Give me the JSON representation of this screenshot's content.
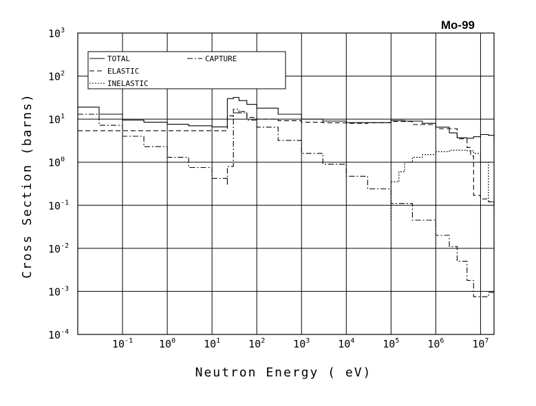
{
  "chart_data": {
    "type": "line",
    "title": "Mo-99",
    "xlabel": "Neutron Energy ( eV)",
    "ylabel": "Cross Section (barns)",
    "xscale": "log",
    "yscale": "log",
    "xlim": [
      0.01,
      20000000
    ],
    "ylim": [
      0.0001,
      1000
    ],
    "grid": true,
    "legend_position": "top-left",
    "x_ticks": [
      {
        "base": "10",
        "exp": "-1",
        "value": 0.1
      },
      {
        "base": "10",
        "exp": "0",
        "value": 1
      },
      {
        "base": "10",
        "exp": "1",
        "value": 10
      },
      {
        "base": "10",
        "exp": "2",
        "value": 100
      },
      {
        "base": "10",
        "exp": "3",
        "value": 1000
      },
      {
        "base": "10",
        "exp": "4",
        "value": 10000
      },
      {
        "base": "10",
        "exp": "5",
        "value": 100000
      },
      {
        "base": "10",
        "exp": "6",
        "value": 1000000
      },
      {
        "base": "10",
        "exp": "7",
        "value": 10000000
      }
    ],
    "y_ticks": [
      {
        "base": "10",
        "exp": "3",
        "value": 1000
      },
      {
        "base": "10",
        "exp": "2",
        "value": 100
      },
      {
        "base": "10",
        "exp": "1",
        "value": 10
      },
      {
        "base": "10",
        "exp": "0",
        "value": 1
      },
      {
        "base": "10",
        "exp": "-1",
        "value": 0.1
      },
      {
        "base": "10",
        "exp": "-2",
        "value": 0.01
      },
      {
        "base": "10",
        "exp": "-3",
        "value": 0.001
      },
      {
        "base": "10",
        "exp": "-4",
        "value": 0.0001
      }
    ],
    "series": [
      {
        "name": "TOTAL",
        "dash": "solid",
        "color": "#000000",
        "x": [
          0.01,
          0.03,
          0.1,
          0.3,
          1,
          3,
          10,
          22,
          22,
          30,
          40,
          60,
          100,
          300,
          1000,
          3000,
          10000,
          30000,
          100000,
          200000,
          500000,
          1000000,
          2000000,
          3000000,
          5000000,
          7000000,
          10000000,
          15000000,
          20000000
        ],
        "y": [
          19,
          13,
          9.5,
          8.5,
          7.6,
          7.0,
          6.6,
          6.3,
          30,
          32,
          27,
          22,
          18,
          13,
          10,
          9.0,
          8.3,
          8.3,
          9.3,
          9.0,
          8.0,
          6.5,
          4.8,
          3.7,
          3.6,
          3.9,
          4.4,
          4.2,
          3.2
        ]
      },
      {
        "name": "ELASTIC",
        "dash": "longdash",
        "color": "#000000",
        "x": [
          0.01,
          0.03,
          0.1,
          0.3,
          1,
          3,
          10,
          22,
          22,
          30,
          40,
          60,
          100,
          300,
          1000,
          3000,
          10000,
          30000,
          100000,
          300000,
          1000000,
          3000000,
          5000000,
          6000000,
          7000000,
          10000000,
          15000000,
          20000000
        ],
        "y": [
          5.4,
          5.4,
          5.4,
          5.4,
          5.4,
          5.4,
          5.4,
          5.4,
          12,
          14,
          15,
          11,
          10,
          9.2,
          8.5,
          8.2,
          8.0,
          8.2,
          8.8,
          7.5,
          6.0,
          3.5,
          2.2,
          1.4,
          0.17,
          0.14,
          0.12,
          0.08
        ]
      },
      {
        "name": "CAPTURE",
        "dash": "dashdot",
        "color": "#000000",
        "x": [
          0.01,
          0.03,
          0.1,
          0.3,
          1,
          3,
          10,
          22,
          22,
          30,
          40,
          60,
          100,
          300,
          1000,
          3000,
          10000,
          30000,
          100000,
          300000,
          1000000,
          2000000,
          3000000,
          5000000,
          7000000,
          10000000,
          15000000,
          20000000
        ],
        "y": [
          13,
          7.2,
          4.0,
          2.3,
          1.3,
          0.75,
          0.42,
          0.3,
          0.8,
          17,
          14,
          9.5,
          6.5,
          3.2,
          1.6,
          0.9,
          0.47,
          0.24,
          0.11,
          0.045,
          0.02,
          0.011,
          0.005,
          0.0018,
          0.00075,
          0.00075,
          0.00095,
          0.00095
        ]
      },
      {
        "name": "INELASTIC",
        "dash": "dotted",
        "color": "#000000",
        "x": [
          100000,
          100000,
          150000,
          200000,
          300000,
          500000,
          1000000,
          2000000,
          3000000,
          5000000,
          7000000,
          10000000,
          15000000,
          20000000
        ],
        "y": [
          0.045,
          0.35,
          0.6,
          1.0,
          1.3,
          1.5,
          1.75,
          1.9,
          1.9,
          1.85,
          1.6,
          1.0,
          0.12,
          0.07
        ]
      }
    ]
  }
}
